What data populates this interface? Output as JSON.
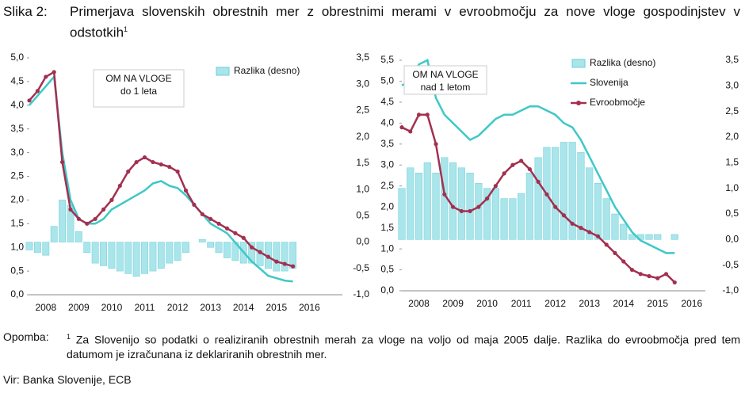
{
  "figure_label": "Slika 2:",
  "title": "Primerjava slovenskih obrestnih mer z obrestnimi merami v evroobmočju za nove vloge gospodinjstev v odstotkih",
  "title_sup": "1",
  "note_label": "Opomba:",
  "note_sup": "1",
  "note": "Za Slovenijo so podatki o realiziranih obrestnih merah za vloge na voljo od maja 2005 dalje. Razlika do evroobmočja pred tem datumom je izračunana iz deklariranih obrestnih mer.",
  "source": "Vir: Banka Slovenije, ECB",
  "chart_data": [
    {
      "type": "line",
      "annotation": [
        "OM NA VLOGE",
        "do 1 leta"
      ],
      "legend": "upper right",
      "x": [
        2008,
        2008.25,
        2008.5,
        2008.75,
        2009,
        2009.25,
        2009.5,
        2009.75,
        2010,
        2010.25,
        2010.5,
        2010.75,
        2011,
        2011.25,
        2011.5,
        2011.75,
        2012,
        2012.25,
        2012.5,
        2012.75,
        2013,
        2013.25,
        2013.5,
        2013.75,
        2014,
        2014.25,
        2014.5,
        2014.75,
        2015,
        2015.25,
        2015.5,
        2015.75,
        2016
      ],
      "xlim": [
        2008,
        2017.5
      ],
      "xticks": [
        {
          "value": 2008.5,
          "label": "2008"
        },
        {
          "value": 2009.5,
          "label": "2009"
        },
        {
          "value": 2010.5,
          "label": "2010"
        },
        {
          "value": 2011.5,
          "label": "2011"
        },
        {
          "value": 2012.5,
          "label": "2012"
        },
        {
          "value": 2013.5,
          "label": "2013"
        },
        {
          "value": 2014.5,
          "label": "2014"
        },
        {
          "value": 2015.5,
          "label": "2015"
        },
        {
          "value": 2016.5,
          "label": "2016"
        }
      ],
      "ylim": [
        0,
        5
      ],
      "yticks": [
        {
          "value": 0,
          "label": "0,0"
        },
        {
          "value": 0.5,
          "label": "0,5"
        },
        {
          "value": 1,
          "label": "1,0"
        },
        {
          "value": 1.5,
          "label": "1,5"
        },
        {
          "value": 2,
          "label": "2,0"
        },
        {
          "value": 2.5,
          "label": "2,5"
        },
        {
          "value": 3,
          "label": "3,0"
        },
        {
          "value": 3.5,
          "label": "3,5"
        },
        {
          "value": 4,
          "label": "4,0"
        },
        {
          "value": 4.5,
          "label": "4,5"
        },
        {
          "value": 5,
          "label": "5,0"
        }
      ],
      "y2lim": [
        -1,
        3.5
      ],
      "y2ticks": [
        {
          "value": -1,
          "label": "-1,0"
        },
        {
          "value": -0.5,
          "label": "-0,5"
        },
        {
          "value": 0,
          "label": "0,0"
        },
        {
          "value": 0.5,
          "label": "0,5"
        },
        {
          "value": 1,
          "label": "1,0"
        },
        {
          "value": 1.5,
          "label": "1,5"
        },
        {
          "value": 2,
          "label": "2,0"
        },
        {
          "value": 2.5,
          "label": "2,5"
        },
        {
          "value": 3,
          "label": "3,0"
        },
        {
          "value": 3.5,
          "label": "3,5"
        }
      ],
      "series": [
        {
          "name": "Razlika (desno)",
          "type": "bar",
          "axis": "y2",
          "color": "#a9e5ea",
          "values": [
            -0.15,
            -0.2,
            -0.25,
            0.3,
            0.8,
            0.7,
            0.2,
            -0.2,
            -0.4,
            -0.45,
            -0.5,
            -0.55,
            -0.6,
            -0.65,
            -0.6,
            -0.55,
            -0.5,
            -0.4,
            -0.35,
            -0.2,
            0.0,
            0.05,
            -0.1,
            -0.2,
            -0.3,
            -0.35,
            -0.4,
            -0.4,
            -0.45,
            -0.5,
            -0.55,
            -0.55,
            -0.5
          ]
        },
        {
          "type": "line",
          "color": "#3ec8c8",
          "values": [
            4.0,
            4.2,
            4.4,
            4.6,
            3.0,
            2.0,
            1.6,
            1.5,
            1.5,
            1.6,
            1.8,
            1.9,
            2.0,
            2.1,
            2.2,
            2.35,
            2.4,
            2.3,
            2.25,
            2.1,
            1.9,
            1.7,
            1.5,
            1.4,
            1.3,
            1.1,
            0.9,
            0.7,
            0.55,
            0.4,
            0.35,
            0.3,
            0.28
          ]
        },
        {
          "type": "line",
          "marker": true,
          "color": "#a3304f",
          "values": [
            4.1,
            4.3,
            4.6,
            4.7,
            2.8,
            1.8,
            1.6,
            1.5,
            1.6,
            1.8,
            2.0,
            2.3,
            2.6,
            2.8,
            2.9,
            2.8,
            2.75,
            2.7,
            2.6,
            2.2,
            1.9,
            1.7,
            1.6,
            1.5,
            1.4,
            1.3,
            1.2,
            1.0,
            0.9,
            0.8,
            0.7,
            0.65,
            0.6
          ]
        }
      ]
    },
    {
      "type": "line",
      "annotation": [
        "OM NA VLOGE",
        "nad 1 letom"
      ],
      "legend": "upper right",
      "x": [
        2008,
        2008.25,
        2008.5,
        2008.75,
        2009,
        2009.25,
        2009.5,
        2009.75,
        2010,
        2010.25,
        2010.5,
        2010.75,
        2011,
        2011.25,
        2011.5,
        2011.75,
        2012,
        2012.25,
        2012.5,
        2012.75,
        2013,
        2013.25,
        2013.5,
        2013.75,
        2014,
        2014.25,
        2014.5,
        2014.75,
        2015,
        2015.25,
        2015.5,
        2015.75,
        2016
      ],
      "xlim": [
        2008,
        2016.9
      ],
      "xticks": [
        {
          "value": 2008.5,
          "label": "2008"
        },
        {
          "value": 2009.5,
          "label": "2009"
        },
        {
          "value": 2010.5,
          "label": "2010"
        },
        {
          "value": 2011.5,
          "label": "2011"
        },
        {
          "value": 2012.5,
          "label": "2012"
        },
        {
          "value": 2013.5,
          "label": "2013"
        },
        {
          "value": 2014.5,
          "label": "2014"
        },
        {
          "value": 2015.5,
          "label": "2015"
        },
        {
          "value": 2016.5,
          "label": "2016"
        }
      ],
      "ylim": [
        0,
        5.5
      ],
      "yticks": [
        {
          "value": 0,
          "label": "0,0"
        },
        {
          "value": 0.5,
          "label": "0,5"
        },
        {
          "value": 1,
          "label": "1,0"
        },
        {
          "value": 1.5,
          "label": "1,5"
        },
        {
          "value": 2,
          "label": "2,0"
        },
        {
          "value": 2.5,
          "label": "2,5"
        },
        {
          "value": 3,
          "label": "3,0"
        },
        {
          "value": 3.5,
          "label": "3,5"
        },
        {
          "value": 4,
          "label": "4,0"
        },
        {
          "value": 4.5,
          "label": "4,5"
        },
        {
          "value": 5,
          "label": "5,0"
        },
        {
          "value": 5.5,
          "label": "5,5"
        }
      ],
      "y2lim": [
        -1,
        3.5
      ],
      "y2ticks": [
        {
          "value": -1,
          "label": "-1,0"
        },
        {
          "value": -0.5,
          "label": "-0,5"
        },
        {
          "value": 0,
          "label": "0,0"
        },
        {
          "value": 0.5,
          "label": "0,5"
        },
        {
          "value": 1,
          "label": "1,0"
        },
        {
          "value": 1.5,
          "label": "1,5"
        },
        {
          "value": 2,
          "label": "2,0"
        },
        {
          "value": 2.5,
          "label": "2,5"
        },
        {
          "value": 3,
          "label": "3,0"
        },
        {
          "value": 3.5,
          "label": "3,5"
        }
      ],
      "series": [
        {
          "name": "Razlika (desno)",
          "type": "bar",
          "axis": "y2",
          "color": "#a9e5ea",
          "values": [
            1.0,
            1.4,
            1.3,
            1.5,
            1.3,
            1.6,
            1.5,
            1.4,
            1.3,
            1.1,
            1.0,
            1.0,
            0.8,
            0.8,
            0.9,
            1.3,
            1.6,
            1.8,
            1.8,
            1.9,
            1.9,
            1.7,
            1.4,
            1.1,
            0.8,
            0.5,
            0.3,
            0.1,
            0.1,
            0.1,
            0.1,
            0.0,
            0.1
          ]
        },
        {
          "name": "Slovenija",
          "type": "line",
          "color": "#3ec8c8",
          "values": [
            4.9,
            5.0,
            5.4,
            5.5,
            4.6,
            4.2,
            4.0,
            3.8,
            3.6,
            3.7,
            3.9,
            4.1,
            4.2,
            4.2,
            4.3,
            4.4,
            4.4,
            4.3,
            4.2,
            4.0,
            3.9,
            3.6,
            3.2,
            2.8,
            2.4,
            2.0,
            1.7,
            1.4,
            1.2,
            1.1,
            1.0,
            0.9,
            0.9
          ]
        },
        {
          "name": "Evroobmočje",
          "type": "line",
          "marker": true,
          "color": "#a3304f",
          "values": [
            3.9,
            3.8,
            4.2,
            4.2,
            3.5,
            2.3,
            2.0,
            1.9,
            1.9,
            2.0,
            2.2,
            2.5,
            2.8,
            3.0,
            3.1,
            2.9,
            2.6,
            2.3,
            2.0,
            1.8,
            1.6,
            1.5,
            1.4,
            1.3,
            1.1,
            0.9,
            0.7,
            0.5,
            0.4,
            0.35,
            0.3,
            0.4,
            0.2
          ]
        }
      ]
    }
  ]
}
